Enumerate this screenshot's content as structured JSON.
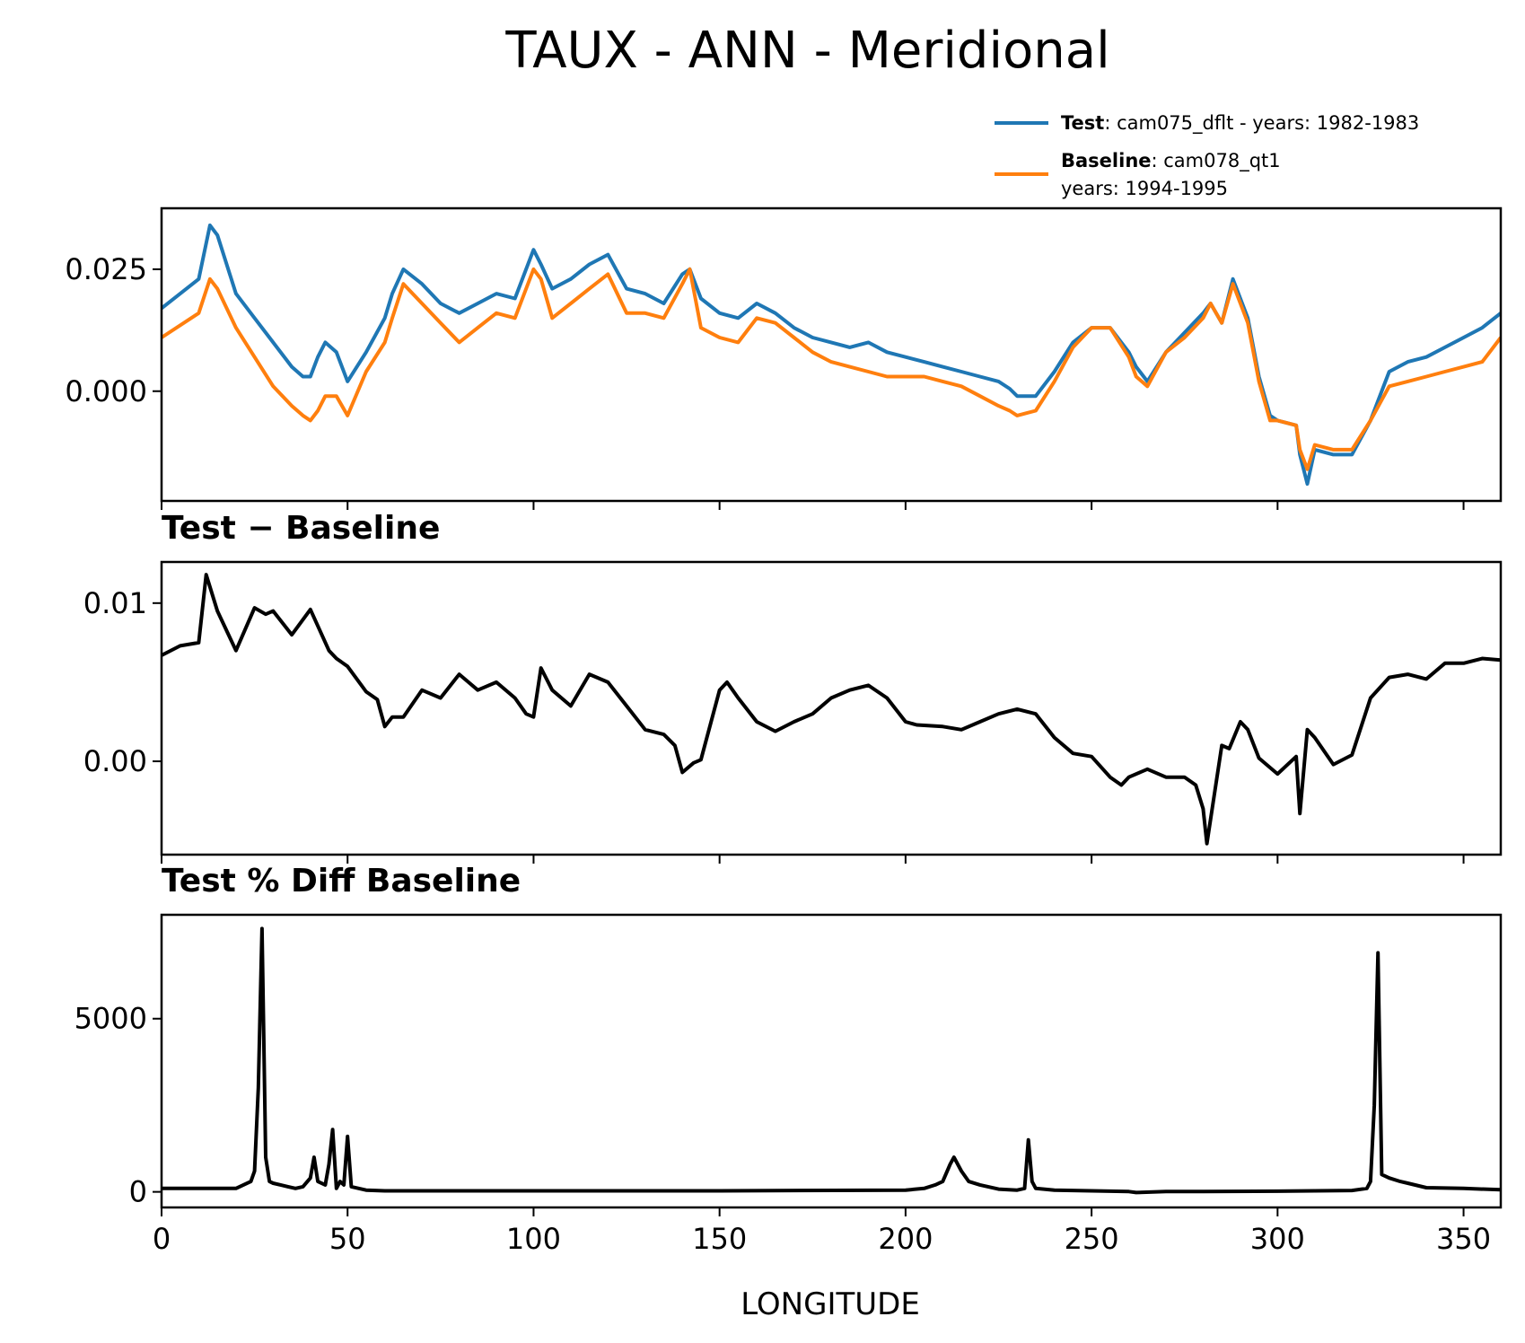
{
  "figure": {
    "title": "TAUX - ANN - Meridional"
  },
  "legend": {
    "test": {
      "name": "Test",
      "desc": ": cam075_dflt - years: 1982-1983",
      "color": "#1f77b4"
    },
    "baseline": {
      "name": "Baseline",
      "desc1": ": cam078_qt1",
      "desc2": "years: 1994-1995",
      "color": "#ff7f0e"
    }
  },
  "chart_data": [
    {
      "type": "line",
      "title": "",
      "xlabel": "",
      "ylabel": "",
      "xlim": [
        0,
        360
      ],
      "ylim": [
        -0.0225,
        0.0375
      ],
      "yticks": [
        0.0,
        0.025
      ],
      "ytick_labels": [
        "0.000",
        "0.025"
      ],
      "x": [
        0,
        10,
        13,
        15,
        20,
        25,
        30,
        35,
        38,
        40,
        42,
        44,
        47,
        50,
        55,
        60,
        62,
        65,
        70,
        75,
        80,
        85,
        90,
        95,
        100,
        102,
        105,
        110,
        115,
        120,
        125,
        130,
        135,
        140,
        142,
        145,
        150,
        155,
        160,
        165,
        170,
        175,
        180,
        185,
        190,
        195,
        200,
        205,
        210,
        215,
        220,
        225,
        228,
        230,
        235,
        240,
        245,
        250,
        255,
        260,
        262,
        265,
        270,
        275,
        280,
        282,
        285,
        288,
        292,
        295,
        298,
        300,
        305,
        306,
        308,
        310,
        315,
        318,
        320,
        325,
        330,
        335,
        340,
        345,
        350,
        355,
        360
      ],
      "series": [
        {
          "name": "Test",
          "color": "#1f77b4",
          "values": [
            0.017,
            0.023,
            0.034,
            0.032,
            0.02,
            0.015,
            0.01,
            0.005,
            0.003,
            0.003,
            0.007,
            0.01,
            0.008,
            0.002,
            0.008,
            0.015,
            0.02,
            0.025,
            0.022,
            0.018,
            0.016,
            0.018,
            0.02,
            0.019,
            0.029,
            0.026,
            0.021,
            0.023,
            0.026,
            0.028,
            0.021,
            0.02,
            0.018,
            0.024,
            0.025,
            0.019,
            0.016,
            0.015,
            0.018,
            0.016,
            0.013,
            0.011,
            0.01,
            0.009,
            0.01,
            0.008,
            0.007,
            0.006,
            0.005,
            0.004,
            0.003,
            0.002,
            0.0005,
            -0.001,
            -0.001,
            0.004,
            0.01,
            0.013,
            0.013,
            0.008,
            0.005,
            0.002,
            0.008,
            0.012,
            0.016,
            0.018,
            0.014,
            0.023,
            0.015,
            0.003,
            -0.005,
            -0.006,
            -0.007,
            -0.013,
            -0.019,
            -0.012,
            -0.013,
            -0.013,
            -0.013,
            -0.006,
            0.004,
            0.006,
            0.007,
            0.009,
            0.011,
            0.013,
            0.016
          ]
        },
        {
          "name": "Baseline",
          "color": "#ff7f0e",
          "values": [
            0.011,
            0.016,
            0.023,
            0.021,
            0.013,
            0.007,
            0.001,
            -0.003,
            -0.005,
            -0.006,
            -0.004,
            -0.001,
            -0.001,
            -0.005,
            0.004,
            0.01,
            0.015,
            0.022,
            0.018,
            0.014,
            0.01,
            0.013,
            0.016,
            0.015,
            0.025,
            0.023,
            0.015,
            0.018,
            0.021,
            0.024,
            0.016,
            0.016,
            0.015,
            0.022,
            0.025,
            0.013,
            0.011,
            0.01,
            0.015,
            0.014,
            0.011,
            0.008,
            0.006,
            0.005,
            0.004,
            0.003,
            0.003,
            0.003,
            0.002,
            0.001,
            -0.001,
            -0.003,
            -0.004,
            -0.005,
            -0.004,
            0.002,
            0.009,
            0.013,
            0.013,
            0.007,
            0.003,
            0.001,
            0.008,
            0.011,
            0.015,
            0.018,
            0.014,
            0.022,
            0.014,
            0.002,
            -0.006,
            -0.006,
            -0.007,
            -0.012,
            -0.016,
            -0.011,
            -0.012,
            -0.012,
            -0.012,
            -0.006,
            0.001,
            0.002,
            0.003,
            0.004,
            0.005,
            0.006,
            0.011
          ]
        }
      ]
    },
    {
      "type": "line",
      "title": "Test − Baseline",
      "xlabel": "",
      "ylabel": "",
      "xlim": [
        0,
        360
      ],
      "ylim": [
        -0.0059,
        0.0126
      ],
      "yticks": [
        0.0,
        0.01
      ],
      "ytick_labels": [
        "0.00",
        "0.01"
      ],
      "x": [
        0,
        5,
        10,
        12,
        15,
        20,
        25,
        28,
        30,
        35,
        40,
        45,
        47,
        50,
        55,
        58,
        60,
        62,
        65,
        70,
        75,
        80,
        85,
        90,
        95,
        98,
        100,
        102,
        105,
        110,
        115,
        120,
        125,
        130,
        135,
        138,
        140,
        143,
        145,
        150,
        152,
        155,
        160,
        165,
        170,
        175,
        180,
        185,
        190,
        195,
        200,
        203,
        210,
        215,
        220,
        225,
        230,
        235,
        240,
        245,
        250,
        255,
        258,
        260,
        265,
        270,
        275,
        278,
        280,
        281,
        285,
        287,
        290,
        292,
        295,
        300,
        305,
        306,
        308,
        310,
        315,
        320,
        325,
        330,
        335,
        340,
        345,
        350,
        355,
        360
      ],
      "series": [
        {
          "name": "",
          "color": "#000000",
          "values": [
            0.0067,
            0.0073,
            0.0075,
            0.0118,
            0.0095,
            0.007,
            0.0097,
            0.0093,
            0.0095,
            0.008,
            0.0096,
            0.007,
            0.0065,
            0.006,
            0.0044,
            0.0039,
            0.0022,
            0.0028,
            0.0028,
            0.0045,
            0.004,
            0.0055,
            0.0045,
            0.005,
            0.004,
            0.003,
            0.0028,
            0.0059,
            0.0045,
            0.0035,
            0.0055,
            0.005,
            0.0035,
            0.002,
            0.0017,
            0.001,
            -0.0007,
            -0.0001,
            0.0001,
            0.0045,
            0.005,
            0.004,
            0.0025,
            0.0019,
            0.0025,
            0.003,
            0.004,
            0.0045,
            0.0048,
            0.004,
            0.0025,
            0.0023,
            0.0022,
            0.002,
            0.0025,
            0.003,
            0.0033,
            0.003,
            0.0015,
            0.0005,
            0.0003,
            -0.001,
            -0.0015,
            -0.001,
            -0.0005,
            -0.001,
            -0.001,
            -0.0015,
            -0.003,
            -0.0052,
            0.001,
            0.0008,
            0.0025,
            0.002,
            0.0002,
            -0.0008,
            0.0003,
            -0.0033,
            0.002,
            0.0015,
            -0.0002,
            0.0004,
            0.004,
            0.0053,
            0.0055,
            0.0052,
            0.0062,
            0.0062,
            0.0065,
            0.0064
          ]
        }
      ]
    },
    {
      "type": "line",
      "title": "Test % Diff Baseline",
      "xlabel": "LONGITUDE",
      "ylabel": "",
      "xlim": [
        0,
        360
      ],
      "ylim": [
        -450,
        8000
      ],
      "yticks": [
        0,
        5000
      ],
      "ytick_labels": [
        "0",
        "5000"
      ],
      "xticks": [
        0,
        50,
        100,
        150,
        200,
        250,
        300,
        350
      ],
      "xtick_labels": [
        "0",
        "50",
        "100",
        "150",
        "200",
        "250",
        "300",
        "350"
      ],
      "x": [
        0,
        10,
        20,
        24,
        25,
        26,
        27,
        28,
        29,
        30,
        32,
        34,
        36,
        38,
        40,
        41,
        42,
        44,
        45,
        46,
        47,
        48,
        49,
        50,
        51,
        55,
        60,
        100,
        150,
        200,
        205,
        208,
        210,
        212,
        213,
        215,
        217,
        220,
        225,
        230,
        232,
        233,
        234,
        235,
        240,
        250,
        260,
        262,
        270,
        280,
        300,
        320,
        324,
        325,
        326,
        327,
        328,
        330,
        333,
        335,
        340,
        350,
        360
      ],
      "series": [
        {
          "name": "",
          "color": "#000000",
          "values": [
            100,
            100,
            100,
            300,
            600,
            3000,
            7600,
            1000,
            300,
            250,
            200,
            150,
            100,
            150,
            400,
            1000,
            300,
            200,
            800,
            1800,
            100,
            300,
            200,
            1600,
            150,
            50,
            30,
            30,
            30,
            50,
            100,
            200,
            300,
            800,
            1000,
            600,
            300,
            200,
            80,
            50,
            100,
            1500,
            300,
            100,
            50,
            30,
            10,
            -20,
            10,
            10,
            20,
            40,
            100,
            300,
            2500,
            6900,
            500,
            400,
            300,
            250,
            120,
            100,
            60
          ]
        }
      ]
    }
  ]
}
